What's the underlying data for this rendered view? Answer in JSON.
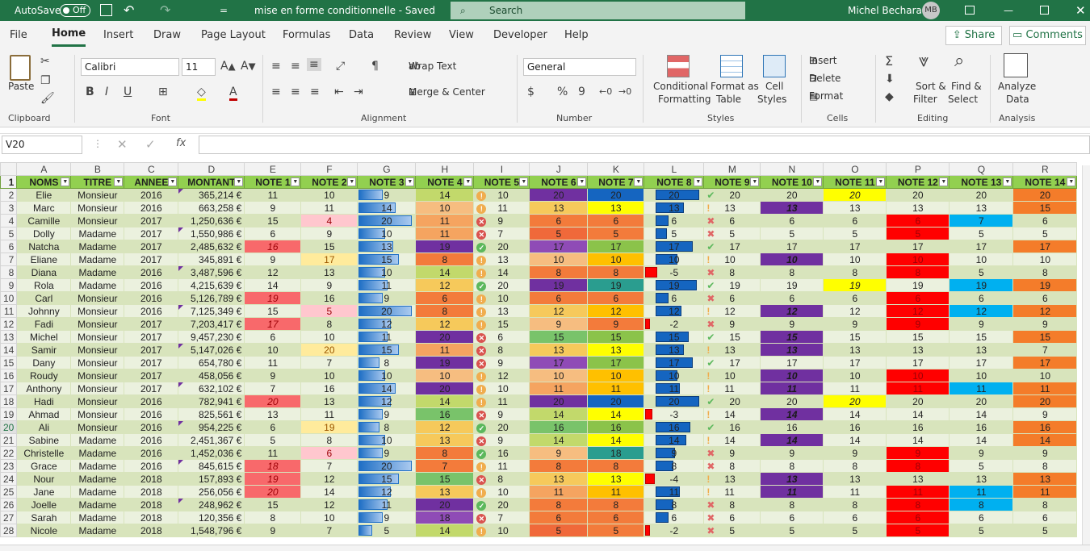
{
  "titlebar": {
    "autosave": "AutoSave",
    "toggle": "Off",
    "filename": "mise en forme conditionnelle - Saved",
    "search": "Search",
    "user": "Michel Bechara",
    "initials": "MB"
  },
  "tabs": [
    "File",
    "Home",
    "Insert",
    "Draw",
    "Page Layout",
    "Formulas",
    "Data",
    "Review",
    "View",
    "Developer",
    "Help"
  ],
  "share": "Share",
  "comments": "Comments",
  "ribbon": {
    "paste": "Paste",
    "font_name": "Calibri",
    "font_size": "11",
    "wrap": "Wrap Text",
    "merge": "Merge & Center",
    "number_format": "General",
    "cond": [
      "Conditional",
      "Formatting"
    ],
    "fmt_table": [
      "Format as",
      "Table"
    ],
    "cell_styles": [
      "Cell",
      "Styles"
    ],
    "insert": "Insert",
    "delete": "Delete",
    "format": "Format",
    "sort": [
      "Sort &",
      "Filter"
    ],
    "find": [
      "Find &",
      "Select"
    ],
    "analyze": [
      "Analyze",
      "Data"
    ],
    "groups": [
      "Clipboard",
      "Font",
      "Alignment",
      "Number",
      "Styles",
      "Cells",
      "Editing",
      "Analysis"
    ]
  },
  "namebox": "V20",
  "columns": [
    "A",
    "B",
    "C",
    "D",
    "E",
    "F",
    "G",
    "H",
    "I",
    "J",
    "K",
    "L",
    "M",
    "N",
    "O",
    "P",
    "Q",
    "R"
  ],
  "headers": [
    "NOMS",
    "TITRE",
    "ANNEE",
    "MONTANT",
    "NOTE 1",
    "NOTE 2",
    "NOTE 3",
    "NOTE 4",
    "NOTE 5",
    "NOTE 6",
    "NOTE 7",
    "NOTE 8",
    "NOTE 9",
    "NOTE 10",
    "NOTE 11",
    "NOTE 12",
    "NOTE 13",
    "NOTE 14"
  ],
  "rows": [
    {
      "r": 2,
      "v": [
        "Elie",
        "Monsieur",
        "2016",
        "365,214 €",
        "11",
        "10",
        "9",
        "14",
        "10",
        "20",
        "20",
        "20",
        "20",
        "20",
        "20",
        "20",
        "20",
        "20"
      ]
    },
    {
      "r": 3,
      "v": [
        "Marc",
        "Monsieur",
        "2016",
        "663,258 €",
        "9",
        "11",
        "14",
        "10",
        "11",
        "13",
        "13",
        "13",
        "13",
        "13",
        "13",
        "13",
        "13",
        "15"
      ]
    },
    {
      "r": 4,
      "v": [
        "Camille",
        "Monsieur",
        "2017",
        "1,250,636 €",
        "15",
        "4",
        "20",
        "11",
        "9",
        "6",
        "6",
        "6",
        "6",
        "6",
        "6",
        "6",
        "7",
        "6"
      ]
    },
    {
      "r": 5,
      "v": [
        "Dolly",
        "Madame",
        "2017",
        "1,550,986 €",
        "6",
        "9",
        "10",
        "11",
        "7",
        "5",
        "5",
        "5",
        "5",
        "5",
        "5",
        "5",
        "5",
        "5"
      ]
    },
    {
      "r": 6,
      "v": [
        "Natcha",
        "Madame",
        "2017",
        "2,485,632 €",
        "16",
        "15",
        "13",
        "19",
        "20",
        "17",
        "17",
        "17",
        "17",
        "17",
        "17",
        "17",
        "17",
        "17"
      ]
    },
    {
      "r": 7,
      "v": [
        "Eliane",
        "Madame",
        "2017",
        "345,891 €",
        "9",
        "17",
        "15",
        "8",
        "13",
        "10",
        "10",
        "10",
        "10",
        "10",
        "10",
        "10",
        "10",
        "10"
      ]
    },
    {
      "r": 8,
      "v": [
        "Diana",
        "Madame",
        "2016",
        "3,487,596 €",
        "12",
        "13",
        "10",
        "14",
        "14",
        "8",
        "8",
        "-5",
        "8",
        "8",
        "8",
        "8",
        "5",
        "8"
      ]
    },
    {
      "r": 9,
      "v": [
        "Rola",
        "Madame",
        "2016",
        "4,215,639 €",
        "14",
        "9",
        "11",
        "12",
        "20",
        "19",
        "19",
        "19",
        "19",
        "19",
        "19",
        "19",
        "19",
        "19"
      ]
    },
    {
      "r": 10,
      "v": [
        "Carl",
        "Monsieur",
        "2016",
        "5,126,789 €",
        "19",
        "16",
        "9",
        "6",
        "10",
        "6",
        "6",
        "6",
        "6",
        "6",
        "6",
        "6",
        "6",
        "6"
      ]
    },
    {
      "r": 11,
      "v": [
        "Johnny",
        "Monsieur",
        "2016",
        "7,125,349 €",
        "15",
        "5",
        "20",
        "8",
        "13",
        "12",
        "12",
        "12",
        "12",
        "12",
        "12",
        "12",
        "12",
        "12"
      ]
    },
    {
      "r": 12,
      "v": [
        "Fadi",
        "Monsieur",
        "2017",
        "7,203,417 €",
        "17",
        "8",
        "12",
        "12",
        "15",
        "9",
        "9",
        "-2",
        "9",
        "9",
        "9",
        "9",
        "9",
        "9"
      ]
    },
    {
      "r": 13,
      "v": [
        "Michel",
        "Monsieur",
        "2017",
        "9,457,230 €",
        "6",
        "10",
        "11",
        "20",
        "6",
        "15",
        "15",
        "15",
        "15",
        "15",
        "15",
        "15",
        "15",
        "15"
      ]
    },
    {
      "r": 14,
      "v": [
        "Samir",
        "Monsieur",
        "2017",
        "5,147,026 €",
        "10",
        "20",
        "15",
        "11",
        "8",
        "13",
        "13",
        "13",
        "13",
        "13",
        "13",
        "13",
        "13",
        "7"
      ]
    },
    {
      "r": 15,
      "v": [
        "Dany",
        "Monsieur",
        "2017",
        "654,780 €",
        "11",
        "7",
        "8",
        "19",
        "9",
        "17",
        "17",
        "17",
        "17",
        "17",
        "17",
        "17",
        "17",
        "17"
      ]
    },
    {
      "r": 16,
      "v": [
        "Roudy",
        "Monsieur",
        "2017",
        "458,056 €",
        "9",
        "10",
        "10",
        "10",
        "12",
        "10",
        "10",
        "10",
        "10",
        "10",
        "10",
        "10",
        "10",
        "10"
      ]
    },
    {
      "r": 17,
      "v": [
        "Anthony",
        "Monsieur",
        "2017",
        "632,102 €",
        "7",
        "16",
        "14",
        "20",
        "10",
        "11",
        "11",
        "11",
        "11",
        "11",
        "11",
        "11",
        "11",
        "11"
      ]
    },
    {
      "r": 18,
      "v": [
        "Hadi",
        "Monsieur",
        "2016",
        "782,941 €",
        "20",
        "13",
        "12",
        "14",
        "11",
        "20",
        "20",
        "20",
        "20",
        "20",
        "20",
        "20",
        "20",
        "20"
      ]
    },
    {
      "r": 19,
      "v": [
        "Ahmad",
        "Monsieur",
        "2016",
        "825,561 €",
        "13",
        "11",
        "9",
        "16",
        "9",
        "14",
        "14",
        "-3",
        "14",
        "14",
        "14",
        "14",
        "14",
        "9"
      ]
    },
    {
      "r": 20,
      "v": [
        "Ali",
        "Monsieur",
        "2016",
        "954,225 €",
        "6",
        "19",
        "8",
        "12",
        "20",
        "16",
        "16",
        "16",
        "16",
        "16",
        "16",
        "16",
        "16",
        "16"
      ]
    },
    {
      "r": 21,
      "v": [
        "Sabine",
        "Madame",
        "2016",
        "2,451,367 €",
        "5",
        "8",
        "10",
        "13",
        "9",
        "14",
        "14",
        "14",
        "14",
        "14",
        "14",
        "14",
        "14",
        "14"
      ]
    },
    {
      "r": 22,
      "v": [
        "Christelle",
        "Madame",
        "2016",
        "1,452,036 €",
        "11",
        "6",
        "9",
        "8",
        "16",
        "9",
        "18",
        "9",
        "9",
        "9",
        "9",
        "9",
        "9",
        "9"
      ]
    },
    {
      "r": 23,
      "v": [
        "Grace",
        "Madame",
        "2016",
        "845,615 €",
        "18",
        "7",
        "20",
        "7",
        "11",
        "8",
        "8",
        "8",
        "8",
        "8",
        "8",
        "8",
        "5",
        "8"
      ]
    },
    {
      "r": 24,
      "v": [
        "Nour",
        "Madame",
        "2018",
        "157,893 €",
        "19",
        "12",
        "15",
        "15",
        "8",
        "13",
        "13",
        "-4",
        "13",
        "13",
        "13",
        "13",
        "13",
        "13"
      ]
    },
    {
      "r": 25,
      "v": [
        "Jane",
        "Madame",
        "2018",
        "256,056 €",
        "20",
        "14",
        "12",
        "13",
        "10",
        "11",
        "11",
        "11",
        "11",
        "11",
        "11",
        "11",
        "11",
        "11"
      ]
    },
    {
      "r": 26,
      "v": [
        "Joelle",
        "Madame",
        "2018",
        "248,962 €",
        "15",
        "12",
        "11",
        "20",
        "20",
        "8",
        "8",
        "8",
        "8",
        "8",
        "8",
        "8",
        "8",
        "8"
      ]
    },
    {
      "r": 27,
      "v": [
        "Sarah",
        "Madame",
        "2018",
        "120,356 €",
        "8",
        "10",
        "9",
        "18",
        "7",
        "6",
        "6",
        "6",
        "6",
        "6",
        "6",
        "6",
        "6",
        "6"
      ]
    },
    {
      "r": 28,
      "v": [
        "Nicole",
        "Madame",
        "2018",
        "1,548,796 €",
        "9",
        "7",
        "5",
        "14",
        "10",
        "5",
        "5",
        "-2",
        "5",
        "5",
        "5",
        "5",
        "5",
        "5"
      ]
    }
  ]
}
